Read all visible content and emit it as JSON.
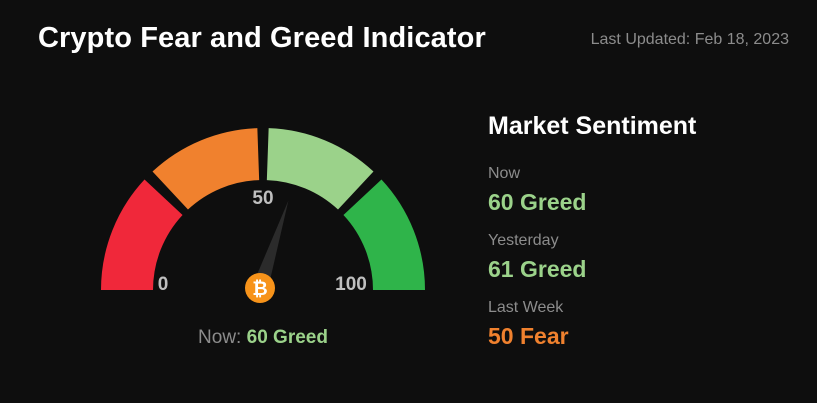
{
  "header": {
    "title": "Crypto Fear and Greed Indicator",
    "last_updated": "Last Updated: Feb 18, 2023"
  },
  "gauge": {
    "value": 60,
    "min": 0,
    "max": 100,
    "label_min": "0",
    "label_mid": "50",
    "label_max": "100",
    "now_label": "Now:",
    "now_value": "60 Greed",
    "icon": "bitcoin-icon",
    "icon_glyph": "₿",
    "segments": [
      {
        "name": "extreme-fear",
        "from": 0,
        "to": 25,
        "color": "#f0283a"
      },
      {
        "name": "fear",
        "from": 25,
        "to": 50,
        "color": "#f0812e"
      },
      {
        "name": "greed",
        "from": 50,
        "to": 75,
        "color": "#9bd28a"
      },
      {
        "name": "extreme-greed",
        "from": 75,
        "to": 100,
        "color": "#2fb44a"
      }
    ]
  },
  "sentiment": {
    "title": "Market Sentiment",
    "items": [
      {
        "label": "Now",
        "value": "60 Greed",
        "color": "#9bd28a"
      },
      {
        "label": "Yesterday",
        "value": "61 Greed",
        "color": "#9bd28a"
      },
      {
        "label": "Last Week",
        "value": "50 Fear",
        "color": "#f0812e"
      }
    ]
  },
  "colors": {
    "background": "#0e0e0e",
    "needle": "#2b2b2b",
    "bitcoin": "#f7931a"
  }
}
